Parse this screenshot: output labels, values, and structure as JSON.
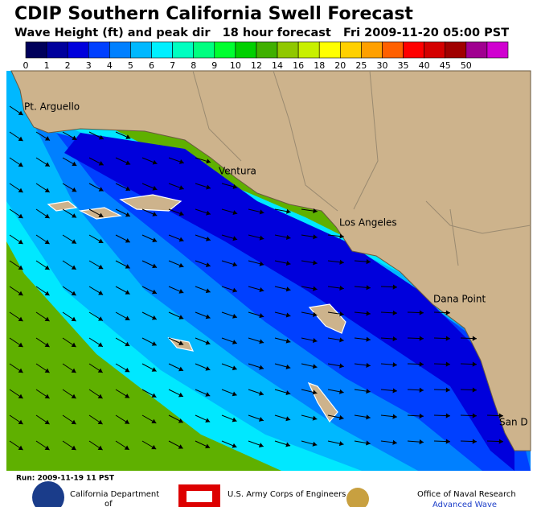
{
  "header": {
    "title": "CDIP Southern California Swell Forecast",
    "subtitle": "Wave Height (ft) and peak dir   18 hour forecast   Fri 2009-11-20 05:00 PST"
  },
  "color_scale": {
    "labels": [
      "0",
      "1",
      "2",
      "3",
      "4",
      "5",
      "6",
      "7",
      "8",
      "9",
      "10",
      "12",
      "14",
      "16",
      "18",
      "20",
      "25",
      "30",
      "35",
      "40",
      "45",
      "50"
    ],
    "colors": [
      "#00005a",
      "#00009c",
      "#0000dc",
      "#0040ff",
      "#0080ff",
      "#00b8ff",
      "#00f0ff",
      "#00ffc0",
      "#00ff80",
      "#00ff30",
      "#00d000",
      "#40b000",
      "#90c800",
      "#c8f000",
      "#ffff00",
      "#ffd000",
      "#ffa000",
      "#ff6000",
      "#ff0000",
      "#d40000",
      "#a00000",
      "#a00090",
      "#d000d0"
    ]
  },
  "places": [
    "Pt. Arguello",
    "Ventura",
    "Los Angeles",
    "Dana Point",
    "San D"
  ],
  "footer": {
    "run": "Run: 2009-11-19 11 PST",
    "sponsors": [
      "California Department",
      "of",
      "U.S. Army Corps of Engineers",
      "Office of Naval Research",
      "Advanced Wave"
    ]
  }
}
